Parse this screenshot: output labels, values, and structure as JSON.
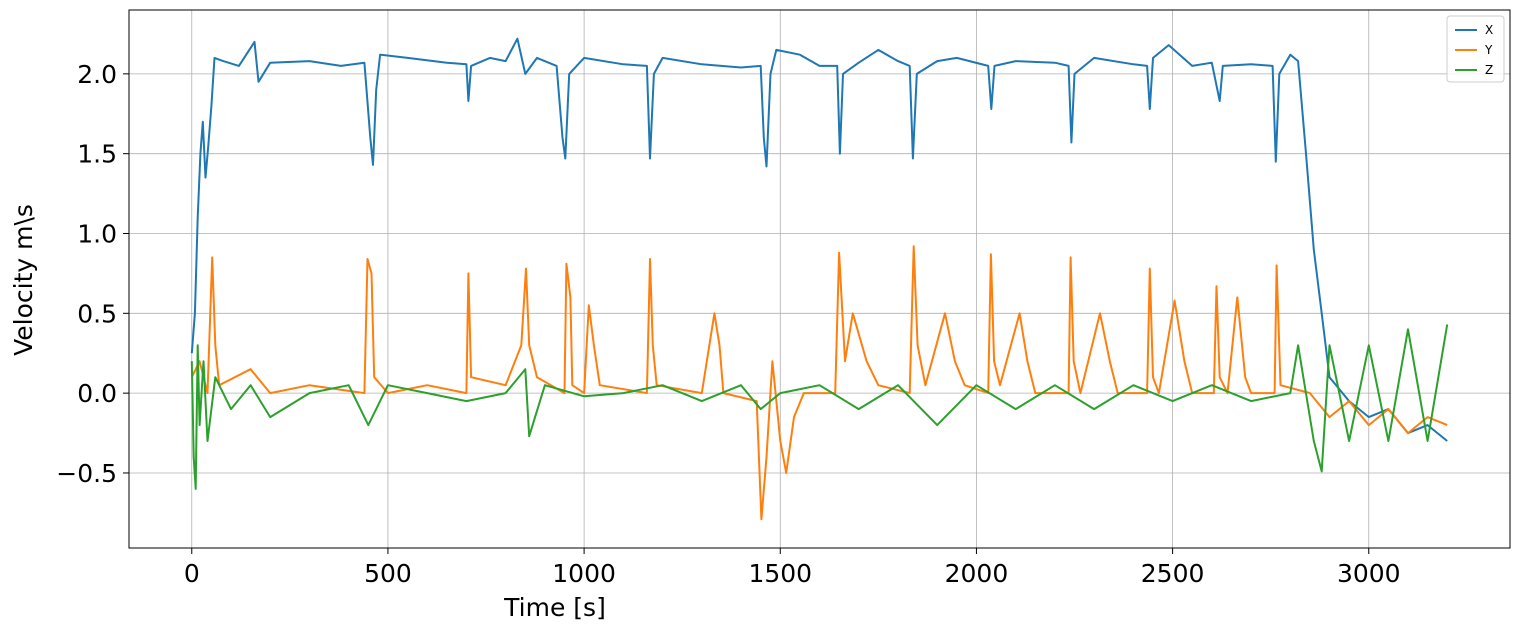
{
  "chart_data": {
    "type": "line",
    "xlabel": "Time [s]",
    "ylabel": "Velocity m\\s",
    "xlim": [
      -160,
      3360
    ],
    "ylim": [
      -0.97,
      2.4
    ],
    "xticks": [
      0,
      500,
      1000,
      1500,
      2000,
      2500,
      3000
    ],
    "yticks": [
      -0.5,
      0.0,
      0.5,
      1.0,
      1.5,
      2.0
    ],
    "ytick_labels": [
      "−0.5",
      "0.0",
      "0.5",
      "1.0",
      "1.5",
      "2.0"
    ],
    "grid": true,
    "legend_position": "top-right",
    "series": [
      {
        "name": "X",
        "color": "#1f77b4",
        "points": [
          [
            0,
            0.25
          ],
          [
            8,
            0.5
          ],
          [
            15,
            1.1
          ],
          [
            22,
            1.5
          ],
          [
            28,
            1.7
          ],
          [
            35,
            1.35
          ],
          [
            42,
            1.55
          ],
          [
            50,
            1.8
          ],
          [
            58,
            2.1
          ],
          [
            80,
            2.08
          ],
          [
            120,
            2.05
          ],
          [
            160,
            2.2
          ],
          [
            170,
            1.95
          ],
          [
            200,
            2.07
          ],
          [
            300,
            2.08
          ],
          [
            380,
            2.05
          ],
          [
            440,
            2.07
          ],
          [
            455,
            1.6
          ],
          [
            462,
            1.43
          ],
          [
            470,
            1.9
          ],
          [
            480,
            2.12
          ],
          [
            550,
            2.1
          ],
          [
            650,
            2.07
          ],
          [
            700,
            2.06
          ],
          [
            705,
            1.83
          ],
          [
            712,
            2.05
          ],
          [
            760,
            2.1
          ],
          [
            800,
            2.08
          ],
          [
            830,
            2.22
          ],
          [
            850,
            2.0
          ],
          [
            880,
            2.1
          ],
          [
            930,
            2.05
          ],
          [
            945,
            1.6
          ],
          [
            952,
            1.47
          ],
          [
            962,
            2.0
          ],
          [
            1000,
            2.1
          ],
          [
            1100,
            2.06
          ],
          [
            1160,
            2.05
          ],
          [
            1168,
            1.47
          ],
          [
            1178,
            2.0
          ],
          [
            1200,
            2.1
          ],
          [
            1300,
            2.06
          ],
          [
            1400,
            2.04
          ],
          [
            1450,
            2.05
          ],
          [
            1458,
            1.6
          ],
          [
            1465,
            1.42
          ],
          [
            1475,
            2.0
          ],
          [
            1490,
            2.15
          ],
          [
            1550,
            2.12
          ],
          [
            1600,
            2.05
          ],
          [
            1645,
            2.05
          ],
          [
            1652,
            1.5
          ],
          [
            1660,
            2.0
          ],
          [
            1700,
            2.07
          ],
          [
            1750,
            2.15
          ],
          [
            1800,
            2.08
          ],
          [
            1830,
            2.05
          ],
          [
            1838,
            1.47
          ],
          [
            1848,
            2.0
          ],
          [
            1900,
            2.08
          ],
          [
            1950,
            2.1
          ],
          [
            2030,
            2.05
          ],
          [
            2038,
            1.78
          ],
          [
            2046,
            2.05
          ],
          [
            2100,
            2.08
          ],
          [
            2200,
            2.07
          ],
          [
            2235,
            2.05
          ],
          [
            2242,
            1.57
          ],
          [
            2250,
            2.0
          ],
          [
            2300,
            2.1
          ],
          [
            2400,
            2.06
          ],
          [
            2435,
            2.05
          ],
          [
            2442,
            1.78
          ],
          [
            2450,
            2.1
          ],
          [
            2490,
            2.18
          ],
          [
            2550,
            2.05
          ],
          [
            2600,
            2.07
          ],
          [
            2620,
            1.83
          ],
          [
            2628,
            2.05
          ],
          [
            2700,
            2.06
          ],
          [
            2755,
            2.05
          ],
          [
            2763,
            1.45
          ],
          [
            2772,
            2.0
          ],
          [
            2800,
            2.12
          ],
          [
            2820,
            2.08
          ],
          [
            2840,
            1.5
          ],
          [
            2860,
            0.9
          ],
          [
            2880,
            0.5
          ],
          [
            2900,
            0.1
          ],
          [
            2950,
            -0.05
          ],
          [
            3000,
            -0.15
          ],
          [
            3050,
            -0.1
          ],
          [
            3100,
            -0.25
          ],
          [
            3150,
            -0.2
          ],
          [
            3200,
            -0.3
          ]
        ]
      },
      {
        "name": "Y",
        "color": "#ff7f0e",
        "points": [
          [
            0,
            0.1
          ],
          [
            20,
            0.2
          ],
          [
            40,
            0.0
          ],
          [
            52,
            0.85
          ],
          [
            60,
            0.3
          ],
          [
            70,
            0.05
          ],
          [
            150,
            0.15
          ],
          [
            200,
            0.0
          ],
          [
            300,
            0.05
          ],
          [
            440,
            0.0
          ],
          [
            448,
            0.84
          ],
          [
            458,
            0.75
          ],
          [
            465,
            0.1
          ],
          [
            500,
            0.0
          ],
          [
            600,
            0.05
          ],
          [
            700,
            0.0
          ],
          [
            705,
            0.75
          ],
          [
            712,
            0.1
          ],
          [
            800,
            0.05
          ],
          [
            840,
            0.3
          ],
          [
            852,
            0.78
          ],
          [
            860,
            0.3
          ],
          [
            880,
            0.1
          ],
          [
            950,
            0.0
          ],
          [
            955,
            0.81
          ],
          [
            965,
            0.6
          ],
          [
            970,
            0.05
          ],
          [
            1000,
            0.0
          ],
          [
            1012,
            0.55
          ],
          [
            1025,
            0.3
          ],
          [
            1040,
            0.05
          ],
          [
            1160,
            0.0
          ],
          [
            1168,
            0.84
          ],
          [
            1175,
            0.3
          ],
          [
            1185,
            0.05
          ],
          [
            1300,
            0.0
          ],
          [
            1332,
            0.5
          ],
          [
            1345,
            0.3
          ],
          [
            1355,
            0.0
          ],
          [
            1440,
            -0.05
          ],
          [
            1452,
            -0.79
          ],
          [
            1465,
            -0.4
          ],
          [
            1480,
            0.2
          ],
          [
            1500,
            -0.3
          ],
          [
            1515,
            -0.5
          ],
          [
            1535,
            -0.15
          ],
          [
            1560,
            0.0
          ],
          [
            1640,
            0.0
          ],
          [
            1650,
            0.88
          ],
          [
            1665,
            0.2
          ],
          [
            1685,
            0.5
          ],
          [
            1720,
            0.2
          ],
          [
            1750,
            0.05
          ],
          [
            1830,
            0.0
          ],
          [
            1840,
            0.92
          ],
          [
            1850,
            0.3
          ],
          [
            1870,
            0.05
          ],
          [
            1920,
            0.5
          ],
          [
            1945,
            0.2
          ],
          [
            1970,
            0.05
          ],
          [
            2030,
            0.0
          ],
          [
            2037,
            0.87
          ],
          [
            2045,
            0.2
          ],
          [
            2060,
            0.05
          ],
          [
            2110,
            0.5
          ],
          [
            2130,
            0.2
          ],
          [
            2150,
            0.0
          ],
          [
            2235,
            0.0
          ],
          [
            2240,
            0.85
          ],
          [
            2248,
            0.2
          ],
          [
            2265,
            0.0
          ],
          [
            2315,
            0.5
          ],
          [
            2340,
            0.2
          ],
          [
            2360,
            0.0
          ],
          [
            2435,
            0.0
          ],
          [
            2442,
            0.78
          ],
          [
            2450,
            0.1
          ],
          [
            2465,
            0.0
          ],
          [
            2505,
            0.58
          ],
          [
            2530,
            0.2
          ],
          [
            2550,
            0.0
          ],
          [
            2605,
            0.0
          ],
          [
            2612,
            0.67
          ],
          [
            2620,
            0.1
          ],
          [
            2640,
            0.0
          ],
          [
            2665,
            0.6
          ],
          [
            2685,
            0.1
          ],
          [
            2700,
            0.0
          ],
          [
            2760,
            0.0
          ],
          [
            2765,
            0.8
          ],
          [
            2775,
            0.05
          ],
          [
            2850,
            0.0
          ],
          [
            2900,
            -0.15
          ],
          [
            2950,
            -0.05
          ],
          [
            3000,
            -0.2
          ],
          [
            3050,
            -0.1
          ],
          [
            3100,
            -0.25
          ],
          [
            3150,
            -0.15
          ],
          [
            3200,
            -0.2
          ]
        ]
      },
      {
        "name": "Z",
        "color": "#2ca02c",
        "points": [
          [
            0,
            0.2
          ],
          [
            5,
            -0.4
          ],
          [
            10,
            -0.6
          ],
          [
            15,
            0.3
          ],
          [
            20,
            -0.2
          ],
          [
            30,
            0.2
          ],
          [
            40,
            -0.3
          ],
          [
            60,
            0.1
          ],
          [
            100,
            -0.1
          ],
          [
            150,
            0.05
          ],
          [
            200,
            -0.15
          ],
          [
            300,
            0.0
          ],
          [
            400,
            0.05
          ],
          [
            450,
            -0.2
          ],
          [
            500,
            0.05
          ],
          [
            600,
            0.0
          ],
          [
            700,
            -0.05
          ],
          [
            800,
            0.0
          ],
          [
            850,
            0.15
          ],
          [
            860,
            -0.27
          ],
          [
            900,
            0.05
          ],
          [
            1000,
            -0.02
          ],
          [
            1100,
            0.0
          ],
          [
            1200,
            0.05
          ],
          [
            1300,
            -0.05
          ],
          [
            1400,
            0.05
          ],
          [
            1450,
            -0.1
          ],
          [
            1500,
            0.0
          ],
          [
            1600,
            0.05
          ],
          [
            1700,
            -0.1
          ],
          [
            1800,
            0.05
          ],
          [
            1900,
            -0.2
          ],
          [
            2000,
            0.05
          ],
          [
            2100,
            -0.1
          ],
          [
            2200,
            0.05
          ],
          [
            2300,
            -0.1
          ],
          [
            2400,
            0.05
          ],
          [
            2500,
            -0.05
          ],
          [
            2600,
            0.05
          ],
          [
            2700,
            -0.05
          ],
          [
            2800,
            0.0
          ],
          [
            2820,
            0.3
          ],
          [
            2860,
            -0.3
          ],
          [
            2880,
            -0.49
          ],
          [
            2900,
            0.3
          ],
          [
            2950,
            -0.3
          ],
          [
            3000,
            0.3
          ],
          [
            3050,
            -0.3
          ],
          [
            3100,
            0.4
          ],
          [
            3150,
            -0.3
          ],
          [
            3200,
            0.43
          ]
        ]
      }
    ]
  }
}
